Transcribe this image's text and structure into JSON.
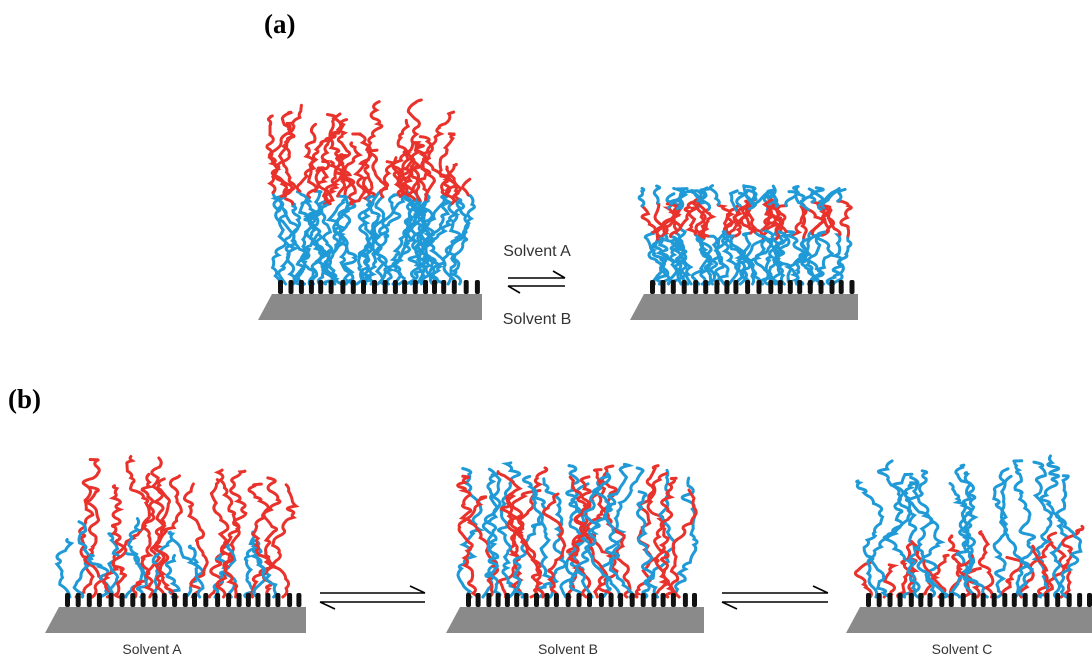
{
  "panel_a": {
    "label": "(a)",
    "arrow_top": "Solvent A",
    "arrow_bottom": "Solvent B"
  },
  "panel_b": {
    "label": "(b)",
    "states": [
      "Solvent A",
      "Solvent B",
      "Solvent C"
    ]
  }
}
